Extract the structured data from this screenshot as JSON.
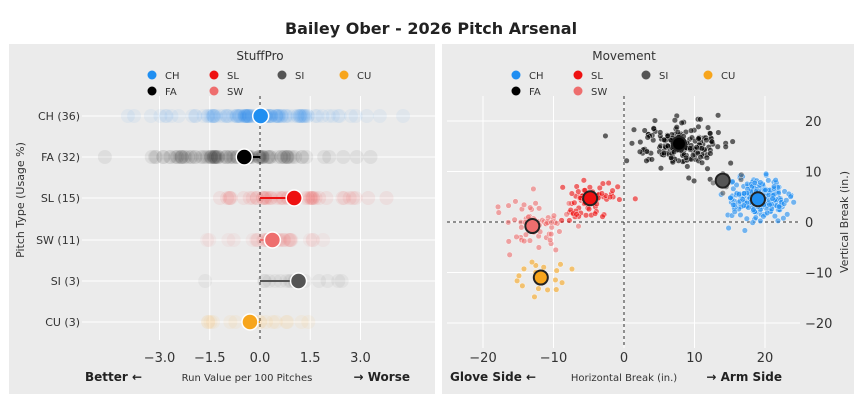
{
  "figure": {
    "title": "Bailey Ober - 2026 Pitch Arsenal",
    "background": "#ffffff",
    "panel_background": "#ebebeb"
  },
  "chart_data": [
    {
      "type": "scatter",
      "title": "StuffPro",
      "xlabel": "Run Value per 100 Pitches",
      "xlabel_left": "Better ←",
      "xlabel_right": "→ Worse",
      "ylabel": "Pitch Type (Usage %)",
      "xlim": [
        -3.6,
        3.4
      ],
      "xticks": [
        "−3.0",
        "−1.5",
        "0.0",
        "1.5",
        "3.0"
      ],
      "xtick_values": [
        -3.0,
        -1.5,
        0.0,
        1.5,
        3.0
      ],
      "grid": true,
      "legend_position": "top",
      "legend": [
        {
          "code": "CH",
          "color": "#1f8ef1"
        },
        {
          "code": "SL",
          "color": "#ee1111"
        },
        {
          "code": "SI",
          "color": "#555555"
        },
        {
          "code": "CU",
          "color": "#f7a51c"
        },
        {
          "code": "FA",
          "color": "#000000"
        },
        {
          "code": "SW",
          "color": "#ee6e6e"
        }
      ],
      "categories": [
        "CH (36)",
        "FA (32)",
        "SL (15)",
        "SW (11)",
        "SI (3)",
        "CU (3)"
      ],
      "series": [
        {
          "code": "CH",
          "color": "#1f8ef1",
          "mean": 0.02
        },
        {
          "code": "FA",
          "color": "#000000",
          "mean": -0.47
        },
        {
          "code": "SL",
          "color": "#ee1111",
          "mean": 1.02
        },
        {
          "code": "SW",
          "color": "#ee6e6e",
          "mean": 0.37
        },
        {
          "code": "SI",
          "color": "#555555",
          "mean": 1.15
        },
        {
          "code": "CU",
          "color": "#f7a51c",
          "mean": -0.3
        }
      ]
    },
    {
      "type": "scatter",
      "title": "Movement",
      "xlabel": "Horizontal Break (in.)",
      "xlabel_left": "Glove Side ←",
      "xlabel_right": "→ Arm Side",
      "ylabel": "Vertical Break (in.)",
      "xlim": [
        -25,
        25
      ],
      "ylim": [
        -25,
        25
      ],
      "xticks": [
        "−20",
        "−10",
        "0",
        "10",
        "20"
      ],
      "xtick_values": [
        -20,
        -10,
        0,
        10,
        20
      ],
      "yticks": [
        "20",
        "10",
        "0",
        "−10",
        "−20"
      ],
      "ytick_values": [
        20,
        10,
        0,
        -10,
        -20
      ],
      "yaxis_side": "right",
      "grid": true,
      "reference_lines": "dashed lines at x = 0 and y = 0",
      "legend_position": "top",
      "legend": [
        {
          "code": "CH",
          "color": "#1f8ef1"
        },
        {
          "code": "SL",
          "color": "#ee1111"
        },
        {
          "code": "SI",
          "color": "#555555"
        },
        {
          "code": "CU",
          "color": "#f7a51c"
        },
        {
          "code": "FA",
          "color": "#000000"
        },
        {
          "code": "SW",
          "color": "#ee6e6e"
        }
      ],
      "series": [
        {
          "code": "CH",
          "color": "#1f8ef1",
          "x": 19.0,
          "y": 4.5
        },
        {
          "code": "FA",
          "color": "#000000",
          "x": 7.8,
          "y": 15.5
        },
        {
          "code": "SL",
          "color": "#ee1111",
          "x": -4.8,
          "y": 4.7
        },
        {
          "code": "SW",
          "color": "#ee6e6e",
          "x": -13.0,
          "y": -0.8
        },
        {
          "code": "SI",
          "color": "#555555",
          "x": 14.0,
          "y": 8.2
        },
        {
          "code": "CU",
          "color": "#f7a51c",
          "x": -11.8,
          "y": -11.0
        }
      ]
    }
  ]
}
